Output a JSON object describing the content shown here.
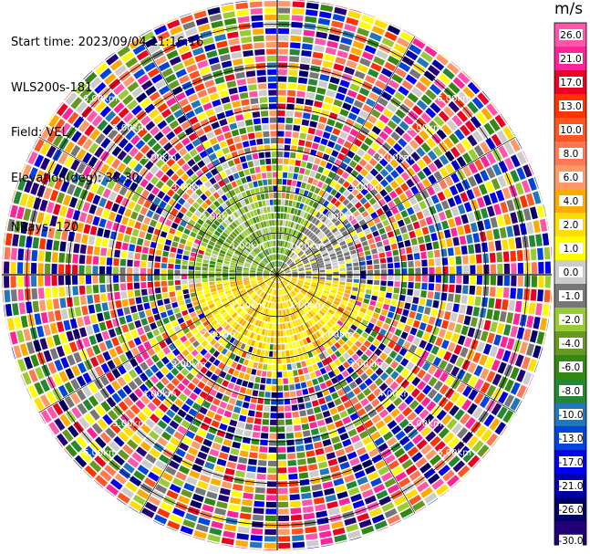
{
  "info": {
    "start_time": "Start time: 2023/09/04 11:16:16",
    "instrument": "WLS200s-181",
    "field": "Field: VEL",
    "elevation": "Elevation(deg): 35.30",
    "nrays": "NRays: 120"
  },
  "colorbar": {
    "unit": "m/s",
    "ticks": [
      "26.0",
      "21.0",
      "17.0",
      "13.0",
      "10.0",
      "8.0",
      "6.0",
      "4.0",
      "2.0",
      "1.0",
      "0.0",
      "-1.0",
      "-2.0",
      "-4.0",
      "-6.0",
      "-8.0",
      "-10.0",
      "-13.0",
      "-17.0",
      "-21.0",
      "-26.0",
      "-30.0"
    ],
    "colors": [
      "#ff55aa",
      "#ff2299",
      "#ee0022",
      "#ff3300",
      "#ff5522",
      "#ff7755",
      "#ff9966",
      "#ffaa00",
      "#ffdd00",
      "#ffff00",
      "#cccccc",
      "#777777",
      "#99cc33",
      "#669922",
      "#338811",
      "#228833",
      "#2277bb",
      "#0044dd",
      "#0000ee",
      "#0000aa",
      "#000066",
      "#220077"
    ]
  },
  "chart_data": {
    "type": "ppi",
    "title": "",
    "nrays": 120,
    "range_rings_km": [
      1.0,
      2.0,
      3.0,
      4.0,
      5.0,
      6.0
    ],
    "range_ring_labels": [
      "1.00km",
      "2.00km",
      "3.00km",
      "4.00km",
      "5.00km",
      "6.00km"
    ],
    "max_range_km": 6.6
  }
}
